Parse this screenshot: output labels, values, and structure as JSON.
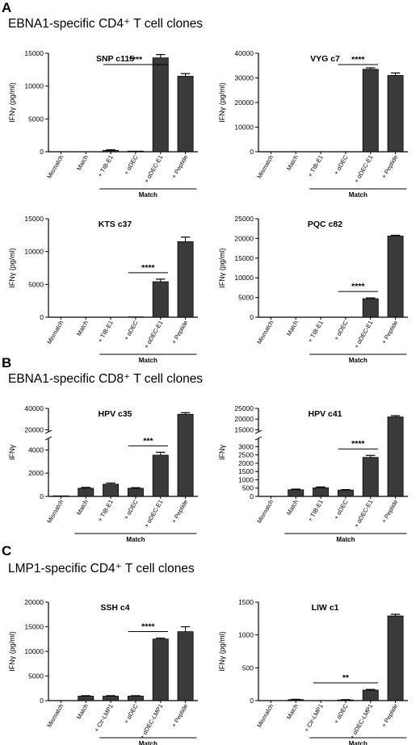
{
  "sections": [
    {
      "letter": "A",
      "title": "EBNA1-specific CD4⁺ T cell clones"
    },
    {
      "letter": "B",
      "title": "EBNA1-specific CD8⁺ T cell clones"
    },
    {
      "letter": "C",
      "title": "LMP1-specific CD4⁺ T cell clones"
    }
  ],
  "colors": {
    "bar": "#3a3a3a",
    "axis": "#000000"
  },
  "chart_data": [
    {
      "type": "bar",
      "title": "SNP c115",
      "ylabel": "IFNγ (pg/ml)",
      "categories": [
        "Mismatch",
        "Match",
        "+ TIB-E1",
        "+ αDEC",
        "+ αDEC-E1",
        "+ Peptide"
      ],
      "values": [
        0,
        0,
        200,
        100,
        14300,
        11500
      ],
      "errors": [
        0,
        0,
        100,
        0,
        500,
        400
      ],
      "ylim": [
        0,
        15000
      ],
      "yticks": [
        0,
        5000,
        10000,
        15000
      ],
      "yticklabels": [
        "0",
        "5000",
        "10000",
        "15000"
      ],
      "bracket_label": "Match",
      "bracket_range": [
        2,
        5
      ],
      "significance": {
        "label": "****",
        "from": 2,
        "to": 4
      }
    },
    {
      "type": "bar",
      "title": "VYG c7",
      "ylabel": "IFNγ (pg/ml)",
      "categories": [
        "Mismatch",
        "Match",
        "+ TIB-E1",
        "+ αDEC",
        "+ αDEC-E1",
        "+ Peptide"
      ],
      "values": [
        0,
        0,
        0,
        0,
        33500,
        31000
      ],
      "errors": [
        0,
        0,
        0,
        0,
        600,
        1000
      ],
      "ylim": [
        0,
        40000
      ],
      "yticks": [
        0,
        10000,
        20000,
        30000,
        40000
      ],
      "yticklabels": [
        "0",
        "10000",
        "20000",
        "30000",
        "40000"
      ],
      "bracket_label": "Match",
      "bracket_range": [
        2,
        5
      ],
      "significance": {
        "label": "****",
        "from": 3,
        "to": 4
      }
    },
    {
      "type": "bar",
      "title": "KTS c37",
      "ylabel": "IFNγ (pg/ml)",
      "categories": [
        "Mismatch",
        "Match",
        "+ TIB-E1",
        "+ αDEC",
        "+ αDEC-E1",
        "+ Peptide"
      ],
      "values": [
        0,
        0,
        0,
        50,
        5400,
        11500
      ],
      "errors": [
        0,
        0,
        0,
        0,
        400,
        700
      ],
      "ylim": [
        0,
        15000
      ],
      "yticks": [
        0,
        5000,
        10000,
        15000
      ],
      "yticklabels": [
        "0",
        "5000",
        "10000",
        "15000"
      ],
      "bracket_label": "Match",
      "bracket_range": [
        2,
        5
      ],
      "significance": {
        "label": "****",
        "from": 3,
        "to": 4
      }
    },
    {
      "type": "bar",
      "title": "PQC c82",
      "ylabel": "IFNγ (pg/ml)",
      "categories": [
        "Mismatch",
        "Match",
        "+ TIB-E1",
        "+ αDEC",
        "+ αDEC-E1",
        "+ Peptide"
      ],
      "values": [
        0,
        0,
        0,
        0,
        4700,
        20600
      ],
      "errors": [
        0,
        0,
        0,
        0,
        200,
        200
      ],
      "ylim": [
        0,
        25000
      ],
      "yticks": [
        0,
        5000,
        10000,
        15000,
        20000,
        25000
      ],
      "yticklabels": [
        "0",
        "5000",
        "10000",
        "15000",
        "20000",
        "25000"
      ],
      "bracket_label": "Match",
      "bracket_range": [
        2,
        5
      ],
      "significance": {
        "label": "****",
        "from": 3,
        "to": 4
      }
    },
    {
      "type": "bar",
      "title": "HPV c35",
      "ylabel": "IFNγ",
      "categories": [
        "Mismatch",
        "Match",
        "+ TIB-E1",
        "+ αDEC",
        "+ αDEC-E1",
        "+ Peptide"
      ],
      "values": [
        50,
        700,
        1050,
        700,
        3550,
        34500
      ],
      "errors": [
        0,
        80,
        100,
        50,
        250,
        1500
      ],
      "broken_axis": {
        "lower": [
          0,
          5000
        ],
        "upper": [
          18000,
          40000
        ]
      },
      "yticks": [
        0,
        2000,
        4000,
        20000,
        40000
      ],
      "yticklabels": [
        "0",
        "2000",
        "4000",
        "20000",
        "40000"
      ],
      "bracket_label": "Match",
      "bracket_range": [
        1,
        5
      ],
      "significance": {
        "label": "***",
        "from": 3,
        "to": 4
      }
    },
    {
      "type": "bar",
      "title": "HPV c41",
      "ylabel": "IFNγ",
      "categories": [
        "Mismatch",
        "Match",
        "+ TIB-E1",
        "+ αDEC",
        "+ αDEC-E1",
        "+ Peptide"
      ],
      "values": [
        0,
        400,
        520,
        380,
        2350,
        21000
      ],
      "errors": [
        0,
        40,
        50,
        30,
        120,
        600
      ],
      "broken_axis": {
        "lower": [
          0,
          3500
        ],
        "upper": [
          14000,
          25000
        ]
      },
      "yticks": [
        0,
        500,
        1000,
        1500,
        2000,
        2500,
        3000,
        15000,
        20000,
        25000
      ],
      "yticklabels": [
        "0",
        "500",
        "1000",
        "1500",
        "2000",
        "2500",
        "3000",
        "15000",
        "20000",
        "25000"
      ],
      "bracket_label": "Match",
      "bracket_range": [
        1,
        5
      ],
      "significance": {
        "label": "****",
        "from": 3,
        "to": 4
      }
    },
    {
      "type": "bar",
      "title": "SSH c4",
      "ylabel": "IFNγ (pg/ml)",
      "categories": [
        "Mismatch",
        "Match",
        "+ Ctr-LMP1",
        "+ αDEC",
        "+ αDEC-LMP1",
        "+ Peptide"
      ],
      "values": [
        0,
        900,
        900,
        900,
        12500,
        14000
      ],
      "errors": [
        0,
        100,
        100,
        100,
        200,
        1000
      ],
      "ylim": [
        0,
        20000
      ],
      "yticks": [
        0,
        5000,
        10000,
        15000,
        20000
      ],
      "yticklabels": [
        "0",
        "5000",
        "10000",
        "15000",
        "20000"
      ],
      "bracket_label": "Match",
      "bracket_range": [
        2,
        5
      ],
      "significance": {
        "label": "****",
        "from": 3,
        "to": 4
      }
    },
    {
      "type": "bar",
      "title": "LIW c1",
      "ylabel": "IFNγ (pg/ml)",
      "categories": [
        "Mismatch",
        "Match",
        "+ Ctr-LMP1",
        "+ αDEC",
        "+ αDEC-LMP1",
        "+ Peptide"
      ],
      "values": [
        0,
        15,
        0,
        10,
        160,
        1290
      ],
      "errors": [
        0,
        5,
        0,
        5,
        10,
        25
      ],
      "ylim": [
        0,
        1500
      ],
      "yticks": [
        0,
        500,
        1000,
        1500
      ],
      "yticklabels": [
        "0",
        "500",
        "1000",
        "1500"
      ],
      "bracket_label": "Match",
      "bracket_range": [
        2,
        5
      ],
      "significance": {
        "label": "**",
        "from": 2,
        "to": 4
      }
    }
  ]
}
